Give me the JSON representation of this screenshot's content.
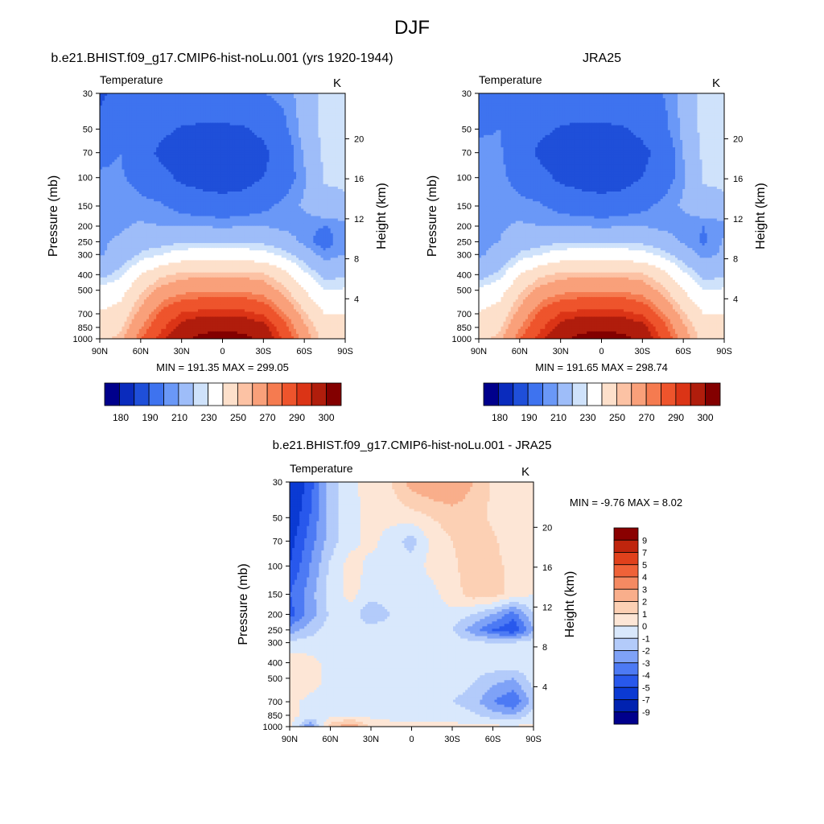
{
  "figure": {
    "title": "DJF"
  },
  "colors": {
    "abs_scale": [
      "#00008c",
      "#0a2bbd",
      "#1f4fd9",
      "#3e73ef",
      "#6a98f7",
      "#9ebdf9",
      "#cfe2fb",
      "#ffffff",
      "#fde0cb",
      "#fcc2a4",
      "#f9a07a",
      "#f57b50",
      "#ee542c",
      "#db3416",
      "#b01d0c",
      "#830000"
    ],
    "diff_scale": [
      "#00008c",
      "#0022b0",
      "#0b3ad3",
      "#2858ec",
      "#4d7af4",
      "#7fa2f7",
      "#b3cbfa",
      "#d9e8fc",
      "#fde6d6",
      "#fcd0b4",
      "#f9ae8b",
      "#f58a62",
      "#ef6238",
      "#e0411c",
      "#bf250d",
      "#8a0000"
    ]
  },
  "chart_data": [
    {
      "type": "heatmap",
      "title": "b.e21.BHIST.f09_g17.CMIP6-hist-noLu.001 (yrs 1920-1944)",
      "left_label": "Temperature",
      "units": "K",
      "ylabel": "Pressure (mb)",
      "ylabel_right": "Height (km)",
      "xticks": [
        "90N",
        "60N",
        "30N",
        "0",
        "30S",
        "60S",
        "90S"
      ],
      "yticks": [
        30,
        50,
        70,
        100,
        150,
        200,
        250,
        300,
        400,
        500,
        700,
        850,
        1000
      ],
      "height_ticks": [
        4,
        8,
        12,
        16,
        20
      ],
      "stats": "MIN = 191.35  MAX = 299.05",
      "colorbar": {
        "labels": [
          "180",
          "190",
          "210",
          "230",
          "250",
          "270",
          "290",
          "300"
        ]
      },
      "lat": [
        90,
        75,
        60,
        45,
        30,
        15,
        0,
        -15,
        -30,
        -45,
        -60,
        -75,
        -90
      ],
      "p": [
        30,
        50,
        70,
        100,
        150,
        200,
        250,
        300,
        400,
        500,
        700,
        850,
        1000
      ],
      "levels": [
        175,
        180,
        185,
        190,
        195,
        200,
        205,
        210,
        215,
        220,
        225,
        230,
        235,
        240,
        245,
        250,
        255,
        260,
        265,
        270,
        275,
        280,
        285,
        290,
        295,
        300
      ],
      "values": [
        [
          197,
          205,
          209,
          210,
          210,
          210,
          210,
          210,
          210,
          212,
          218,
          229,
          230
        ],
        [
          205,
          209,
          205,
          202,
          199,
          198,
          198,
          199,
          202,
          208,
          218,
          228,
          230
        ],
        [
          208,
          210,
          204,
          198,
          196,
          195,
          195,
          196,
          198,
          204,
          216,
          227,
          228
        ],
        [
          211,
          211,
          207,
          203,
          198,
          196,
          195,
          196,
          200,
          205,
          214,
          226,
          226
        ],
        [
          212,
          214,
          212,
          211,
          207,
          205,
          204,
          205,
          208,
          212,
          216,
          222,
          224
        ],
        [
          213,
          214,
          216,
          215,
          215,
          215,
          214,
          215,
          215,
          213,
          212,
          210,
          212
        ],
        [
          214,
          216,
          221,
          222,
          224,
          224,
          223,
          224,
          223,
          220,
          213,
          206,
          215
        ],
        [
          214,
          218,
          226,
          230,
          234,
          235,
          235,
          235,
          233,
          228,
          220,
          212,
          215
        ],
        [
          222,
          228,
          240,
          248,
          252,
          253,
          253,
          253,
          251,
          244,
          232,
          222,
          224
        ],
        [
          233,
          236,
          248,
          258,
          262,
          264,
          264,
          264,
          261,
          252,
          240,
          230,
          231
        ],
        [
          241,
          244,
          258,
          272,
          281,
          283,
          283,
          283,
          279,
          266,
          251,
          240,
          240
        ],
        [
          245,
          248,
          264,
          278,
          288,
          292,
          293,
          292,
          288,
          274,
          257,
          244,
          244
        ],
        [
          248,
          252,
          270,
          284,
          293,
          298,
          299,
          298,
          293,
          279,
          260,
          246,
          246
        ]
      ]
    },
    {
      "type": "heatmap",
      "title": "JRA25",
      "left_label": "Temperature",
      "units": "K",
      "ylabel": "Pressure (mb)",
      "ylabel_right": "Height (km)",
      "xticks": [
        "90N",
        "60N",
        "30N",
        "0",
        "30S",
        "60S",
        "90S"
      ],
      "yticks": [
        30,
        50,
        70,
        100,
        150,
        200,
        250,
        300,
        400,
        500,
        700,
        850,
        1000
      ],
      "height_ticks": [
        4,
        8,
        12,
        16,
        20
      ],
      "stats": "MIN = 191.65  MAX = 298.74",
      "colorbar": {
        "labels": [
          "180",
          "190",
          "210",
          "230",
          "250",
          "270",
          "290",
          "300"
        ]
      },
      "lat": [
        90,
        75,
        60,
        45,
        30,
        15,
        0,
        -15,
        -30,
        -45,
        -60,
        -75,
        -90
      ],
      "p": [
        30,
        50,
        70,
        100,
        150,
        200,
        250,
        300,
        400,
        500,
        700,
        850,
        1000
      ],
      "levels": [
        175,
        180,
        185,
        190,
        195,
        200,
        205,
        210,
        215,
        220,
        225,
        230,
        235,
        240,
        245,
        250,
        255,
        260,
        265,
        270,
        275,
        280,
        285,
        290,
        295,
        300
      ],
      "values": [
        [
          202,
          206,
          209,
          210,
          209,
          209,
          209,
          209,
          209,
          210,
          217,
          229,
          230
        ],
        [
          209,
          210,
          206,
          202,
          199,
          198,
          198,
          199,
          202,
          207,
          217,
          228,
          230
        ],
        [
          212,
          211,
          205,
          198,
          196,
          195,
          195,
          196,
          198,
          203,
          215,
          227,
          228
        ],
        [
          214,
          212,
          207,
          203,
          198,
          196,
          195,
          196,
          200,
          205,
          214,
          226,
          226
        ],
        [
          214,
          214,
          212,
          211,
          207,
          205,
          204,
          205,
          208,
          212,
          216,
          222,
          224
        ],
        [
          214,
          214,
          216,
          215,
          215,
          215,
          214,
          215,
          215,
          213,
          212,
          210,
          212
        ],
        [
          214,
          215,
          220,
          222,
          224,
          224,
          223,
          224,
          223,
          220,
          214,
          209,
          216
        ],
        [
          214,
          217,
          226,
          230,
          234,
          235,
          235,
          235,
          233,
          228,
          220,
          213,
          216
        ],
        [
          221,
          227,
          240,
          248,
          252,
          253,
          253,
          253,
          251,
          244,
          232,
          222,
          224
        ],
        [
          232,
          236,
          248,
          258,
          262,
          264,
          264,
          264,
          261,
          252,
          240,
          230,
          231
        ],
        [
          241,
          244,
          258,
          272,
          281,
          283,
          283,
          283,
          279,
          266,
          251,
          240,
          240
        ],
        [
          245,
          248,
          264,
          278,
          288,
          292,
          293,
          292,
          288,
          274,
          257,
          244,
          244
        ],
        [
          248,
          252,
          270,
          284,
          293,
          298,
          299,
          298,
          293,
          279,
          260,
          246,
          246
        ]
      ]
    },
    {
      "type": "heatmap",
      "title": "b.e21.BHIST.f09_g17.CMIP6-hist-noLu.001 - JRA25",
      "left_label": "Temperature",
      "units": "K",
      "ylabel": "Pressure (mb)",
      "ylabel_right": "Height (km)",
      "xticks": [
        "90N",
        "60N",
        "30N",
        "0",
        "30S",
        "60S",
        "90S"
      ],
      "yticks": [
        30,
        50,
        70,
        100,
        150,
        200,
        250,
        300,
        400,
        500,
        700,
        850,
        1000
      ],
      "height_ticks": [
        4,
        8,
        12,
        16,
        20
      ],
      "stats": "MIN =  -9.76  MAX =   8.02",
      "colorbar": {
        "labels": [
          "9",
          "7",
          "5",
          "4",
          "3",
          "2",
          "1",
          "0",
          "-1",
          "-2",
          "-3",
          "-4",
          "-5",
          "-7",
          "-9"
        ]
      },
      "lat": [
        90,
        75,
        60,
        45,
        30,
        15,
        0,
        -15,
        -30,
        -45,
        -60,
        -75,
        -90
      ],
      "p": [
        30,
        50,
        70,
        100,
        150,
        200,
        250,
        300,
        400,
        500,
        700,
        850,
        1000
      ],
      "levels": [
        -10,
        -9,
        -7,
        -5,
        -4,
        -3,
        -2,
        -1,
        0,
        1,
        2,
        3,
        4,
        5,
        7,
        9,
        10
      ],
      "values": [
        [
          -6.5,
          -4.5,
          -1.5,
          -0.3,
          0.5,
          1,
          2.5,
          3,
          3,
          2,
          0.8,
          0.3,
          0
        ],
        [
          -6,
          -4,
          -1.5,
          -0.3,
          0.3,
          0.3,
          0.5,
          1,
          1.5,
          1.5,
          0.8,
          0.3,
          0
        ],
        [
          -5.5,
          -3.5,
          -1.5,
          -0.3,
          0.3,
          -0.5,
          -1.5,
          0.3,
          1,
          1.5,
          1.2,
          0.3,
          0
        ],
        [
          -5,
          -3,
          -0.8,
          0.5,
          -0.3,
          -0.3,
          -0.5,
          0.3,
          0.8,
          1.5,
          1.5,
          0.5,
          0
        ],
        [
          -4,
          -2.5,
          -0.5,
          0.3,
          -0.5,
          -0.3,
          -0.3,
          -0.3,
          0.5,
          1.5,
          1.5,
          0.5,
          0
        ],
        [
          -4.5,
          -2.5,
          -0.8,
          -0.3,
          -2,
          -1,
          -0.5,
          -0.3,
          -0.3,
          -1,
          -2,
          -3.5,
          -1
        ],
        [
          -2.5,
          -1.5,
          -0.5,
          -0.3,
          -0.5,
          -0.3,
          -0.3,
          -0.3,
          -1,
          -2.5,
          -4,
          -5,
          -2
        ],
        [
          -0.8,
          -0.5,
          -0.3,
          -0.3,
          -0.3,
          -0.3,
          -0.3,
          -0.3,
          -0.3,
          -0.8,
          -1,
          -1,
          -0.5
        ],
        [
          0.8,
          0.3,
          -0.3,
          -0.3,
          -0.3,
          -0.3,
          -0.3,
          -0.3,
          -0.3,
          -0.3,
          -0.3,
          -0.3,
          -0.3
        ],
        [
          0.8,
          0.5,
          -0.3,
          -0.3,
          -0.3,
          -0.3,
          -1,
          -0.3,
          -0.3,
          -0.8,
          -1.5,
          -2,
          -0.5
        ],
        [
          0.3,
          -0.3,
          -0.3,
          -0.3,
          -1,
          -0.3,
          -0.3,
          -0.3,
          -1,
          -1.5,
          -3,
          -4,
          -1.5
        ],
        [
          0.3,
          -0.3,
          -0.3,
          -0.3,
          -0.3,
          -0.3,
          -0.3,
          -0.3,
          -0.3,
          -0.8,
          -1.5,
          -2,
          -0.5
        ],
        [
          0.5,
          -3,
          1.5,
          3,
          0.8,
          0.3,
          0.2,
          0.2,
          0.2,
          0.2,
          0.2,
          0.2,
          0.2
        ]
      ]
    }
  ]
}
